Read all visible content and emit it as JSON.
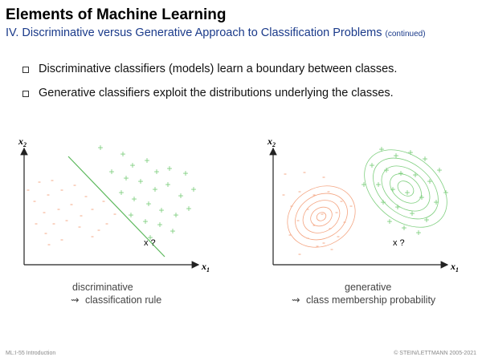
{
  "header": {
    "title": "Elements of Machine Learning",
    "subtitle": "IV. Discriminative versus Generative Approach to Classification Problems",
    "subtitle_note": "(continued)"
  },
  "bullets": [
    "Discriminative classifiers (models) learn a boundary between classes.",
    "Generative classifiers exploit the distributions underlying the classes."
  ],
  "colors": {
    "negative_class": "#f4a582",
    "positive_class": "#7fcf7f",
    "boundary_line": "#5cb85c",
    "subtitle": "#1a3a8a"
  },
  "diagrams": {
    "left": {
      "y_axis": "x",
      "y_sub": "2",
      "x_axis": "x",
      "x_sub": "1",
      "query": "x ?",
      "caption_line1": "discriminative",
      "caption_arrow": "⇝",
      "caption_line2": "classification rule"
    },
    "right": {
      "y_axis": "x",
      "y_sub": "2",
      "x_axis": "x",
      "x_sub": "1",
      "query": "x ?",
      "caption_line1": "generative",
      "caption_arrow": "⇝",
      "caption_line2": "class membership probability"
    }
  },
  "footer": {
    "left": "ML:I-55   Introduction",
    "right": "© STEIN/LETTMANN 2005-2021"
  }
}
